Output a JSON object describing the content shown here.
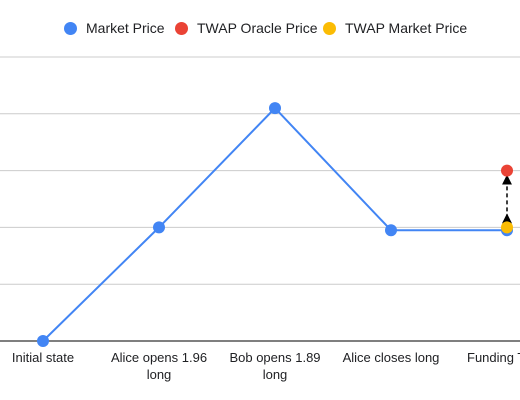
{
  "chart_data": {
    "type": "line",
    "title": "",
    "xlabel": "",
    "ylabel": "",
    "categories": [
      "Initial state",
      "Alice opens 1.96 long",
      "Bob opens 1.89 long",
      "Alice closes long",
      "Funding T"
    ],
    "series": [
      {
        "name": "Market Price",
        "color": "#4285F4",
        "values": [
          0,
          2,
          4.1,
          1.95,
          1.95
        ]
      },
      {
        "name": "TWAP Oracle Price",
        "color": "#EA4335",
        "values": [
          null,
          null,
          null,
          null,
          3
        ]
      },
      {
        "name": "TWAP Market Price",
        "color": "#FBBC04",
        "values": [
          null,
          null,
          null,
          null,
          2
        ]
      }
    ],
    "annotations": [
      {
        "type": "double-arrow",
        "category": "Funding T",
        "from_series": "TWAP Market Price",
        "to_series": "TWAP Oracle Price",
        "style": "dashed"
      }
    ],
    "ylim": [
      0,
      5
    ],
    "grid": true,
    "legend_position": "top"
  }
}
